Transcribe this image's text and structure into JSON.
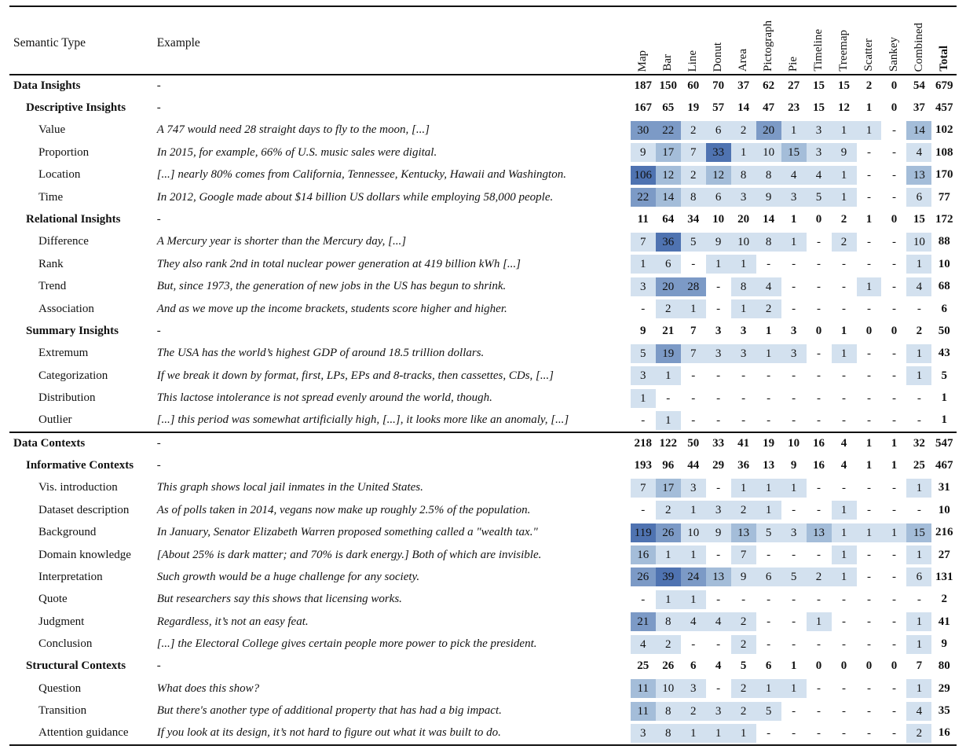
{
  "header": {
    "semantic_type": "Semantic Type",
    "example": "Example",
    "columns": [
      "Map",
      "Bar",
      "Line",
      "Donut",
      "Area",
      "Pictograph",
      "Pie",
      "Timeline",
      "Treemap",
      "Scatter",
      "Sankey",
      "Combined"
    ],
    "total": "Total"
  },
  "colors": {
    "empty": "#ffffff",
    "light": "#d3e1ef",
    "mid": "#a4bdd9",
    "strong": "#7c9ac6",
    "dark": "#4f73b1"
  },
  "rows": [
    {
      "level": 1,
      "name": "Data Insights",
      "example": "-",
      "values": [
        "187",
        "150",
        "60",
        "70",
        "37",
        "62",
        "27",
        "15",
        "15",
        "2",
        "0",
        "54"
      ],
      "total": "679"
    },
    {
      "level": 2,
      "name": "Descriptive Insights",
      "example": "-",
      "values": [
        "167",
        "65",
        "19",
        "57",
        "14",
        "47",
        "23",
        "15",
        "12",
        "1",
        "0",
        "37"
      ],
      "total": "457"
    },
    {
      "level": 3,
      "name": "Value",
      "example": "A 747 would need 28 straight days to fly to the moon, [...]",
      "values": [
        "30",
        "22",
        "2",
        "6",
        "2",
        "20",
        "1",
        "3",
        "1",
        "1",
        "-",
        "14"
      ],
      "total": "102"
    },
    {
      "level": 3,
      "name": "Proportion",
      "example": "In 2015, for example, 66% of U.S. music sales were digital.",
      "values": [
        "9",
        "17",
        "7",
        "33",
        "1",
        "10",
        "15",
        "3",
        "9",
        "-",
        "-",
        "4"
      ],
      "total": "108"
    },
    {
      "level": 3,
      "name": "Location",
      "example": "[...] nearly 80% comes from California, Tennessee, Kentucky, Hawaii and Washington.",
      "values": [
        "106",
        "12",
        "2",
        "12",
        "8",
        "8",
        "4",
        "4",
        "1",
        "-",
        "-",
        "13"
      ],
      "total": "170"
    },
    {
      "level": 3,
      "name": "Time",
      "example": "In 2012, Google made about $14 billion US dollars while employing 58,000 people.",
      "values": [
        "22",
        "14",
        "8",
        "6",
        "3",
        "9",
        "3",
        "5",
        "1",
        "-",
        "-",
        "6"
      ],
      "total": "77"
    },
    {
      "level": 2,
      "name": "Relational Insights",
      "example": "-",
      "values": [
        "11",
        "64",
        "34",
        "10",
        "20",
        "14",
        "1",
        "0",
        "2",
        "1",
        "0",
        "15"
      ],
      "total": "172"
    },
    {
      "level": 3,
      "name": "Difference",
      "example": "A Mercury year is shorter than the Mercury day, [...]",
      "values": [
        "7",
        "36",
        "5",
        "9",
        "10",
        "8",
        "1",
        "-",
        "2",
        "-",
        "-",
        "10"
      ],
      "total": "88"
    },
    {
      "level": 3,
      "name": "Rank",
      "example": "They also rank 2nd in total nuclear power generation at 419 billion kWh [...]",
      "values": [
        "1",
        "6",
        "-",
        "1",
        "1",
        "-",
        "-",
        "-",
        "-",
        "-",
        "-",
        "1"
      ],
      "total": "10"
    },
    {
      "level": 3,
      "name": "Trend",
      "example": "But, since 1973, the generation of new jobs in the US has begun to shrink.",
      "values": [
        "3",
        "20",
        "28",
        "-",
        "8",
        "4",
        "-",
        "-",
        "-",
        "1",
        "-",
        "4"
      ],
      "total": "68"
    },
    {
      "level": 3,
      "name": "Association",
      "example": "And as we move up the income brackets, students score higher and higher.",
      "values": [
        "-",
        "2",
        "1",
        "-",
        "1",
        "2",
        "-",
        "-",
        "-",
        "-",
        "-",
        "-"
      ],
      "total": "6"
    },
    {
      "level": 2,
      "name": "Summary Insights",
      "example": "-",
      "values": [
        "9",
        "21",
        "7",
        "3",
        "3",
        "1",
        "3",
        "0",
        "1",
        "0",
        "0",
        "2"
      ],
      "total": "50"
    },
    {
      "level": 3,
      "name": "Extremum",
      "example": "The USA has the world’s highest GDP of around 18.5 trillion dollars.",
      "values": [
        "5",
        "19",
        "7",
        "3",
        "3",
        "1",
        "3",
        "-",
        "1",
        "-",
        "-",
        "1"
      ],
      "total": "43"
    },
    {
      "level": 3,
      "name": "Categorization",
      "example": "If we break it down by format, first, LPs, EPs and 8-tracks, then cassettes, CDs, [...]",
      "values": [
        "3",
        "1",
        "-",
        "-",
        "-",
        "-",
        "-",
        "-",
        "-",
        "-",
        "-",
        "1"
      ],
      "total": "5"
    },
    {
      "level": 3,
      "name": "Distribution",
      "example": "This lactose intolerance is not spread evenly around the world, though.",
      "values": [
        "1",
        "-",
        "-",
        "-",
        "-",
        "-",
        "-",
        "-",
        "-",
        "-",
        "-",
        "-"
      ],
      "total": "1"
    },
    {
      "level": 3,
      "name": "Outlier",
      "example": "[...] this period was somewhat artificially high, [...], it looks more like an anomaly, [...]",
      "values": [
        "-",
        "1",
        "-",
        "-",
        "-",
        "-",
        "-",
        "-",
        "-",
        "-",
        "-",
        "-"
      ],
      "total": "1"
    },
    {
      "level": 1,
      "name": "Data Contexts",
      "example": "-",
      "values": [
        "218",
        "122",
        "50",
        "33",
        "41",
        "19",
        "10",
        "16",
        "4",
        "1",
        "1",
        "32"
      ],
      "total": "547"
    },
    {
      "level": 2,
      "name": "Informative Contexts",
      "example": "-",
      "values": [
        "193",
        "96",
        "44",
        "29",
        "36",
        "13",
        "9",
        "16",
        "4",
        "1",
        "1",
        "25"
      ],
      "total": "467"
    },
    {
      "level": 3,
      "name": "Vis. introduction",
      "example": "This graph shows local jail inmates in the United States.",
      "values": [
        "7",
        "17",
        "3",
        "-",
        "1",
        "1",
        "1",
        "-",
        "-",
        "-",
        "-",
        "1"
      ],
      "total": "31"
    },
    {
      "level": 3,
      "name": "Dataset description",
      "example": "As of polls taken in 2014, vegans now make up roughly 2.5% of the population.",
      "values": [
        "-",
        "2",
        "1",
        "3",
        "2",
        "1",
        "-",
        "-",
        "1",
        "-",
        "-",
        "-"
      ],
      "total": "10"
    },
    {
      "level": 3,
      "name": "Background",
      "example": "In January, Senator Elizabeth Warren proposed something called a \"wealth tax.\"",
      "values": [
        "119",
        "26",
        "10",
        "9",
        "13",
        "5",
        "3",
        "13",
        "1",
        "1",
        "1",
        "15"
      ],
      "total": "216"
    },
    {
      "level": 3,
      "name": "Domain knowledge",
      "example": "[About 25% is dark matter; and 70% is dark energy.] Both of which are invisible.",
      "values": [
        "16",
        "1",
        "1",
        "-",
        "7",
        "-",
        "-",
        "-",
        "1",
        "-",
        "-",
        "1"
      ],
      "total": "27"
    },
    {
      "level": 3,
      "name": "Interpretation",
      "example": "Such growth would be a huge challenge for any society.",
      "values": [
        "26",
        "39",
        "24",
        "13",
        "9",
        "6",
        "5",
        "2",
        "1",
        "-",
        "-",
        "6"
      ],
      "total": "131"
    },
    {
      "level": 3,
      "name": "Quote",
      "example": "But researchers say this shows that licensing works.",
      "values": [
        "-",
        "1",
        "1",
        "-",
        "-",
        "-",
        "-",
        "-",
        "-",
        "-",
        "-",
        "-"
      ],
      "total": "2"
    },
    {
      "level": 3,
      "name": "Judgment",
      "example": "Regardless, it’s not an easy feat.",
      "values": [
        "21",
        "8",
        "4",
        "4",
        "2",
        "-",
        "-",
        "1",
        "-",
        "-",
        "-",
        "1"
      ],
      "total": "41"
    },
    {
      "level": 3,
      "name": "Conclusion",
      "example": "[...] the Electoral College gives certain people more power to pick the president.",
      "values": [
        "4",
        "2",
        "-",
        "-",
        "2",
        "-",
        "-",
        "-",
        "-",
        "-",
        "-",
        "1"
      ],
      "total": "9"
    },
    {
      "level": 2,
      "name": "Structural Contexts",
      "example": "-",
      "values": [
        "25",
        "26",
        "6",
        "4",
        "5",
        "6",
        "1",
        "0",
        "0",
        "0",
        "0",
        "7"
      ],
      "total": "80"
    },
    {
      "level": 3,
      "name": "Question",
      "example": "What does this show?",
      "values": [
        "11",
        "10",
        "3",
        "-",
        "2",
        "1",
        "1",
        "-",
        "-",
        "-",
        "-",
        "1"
      ],
      "total": "29"
    },
    {
      "level": 3,
      "name": "Transition",
      "example": "But there's another type of additional property that has had a big impact.",
      "values": [
        "11",
        "8",
        "2",
        "3",
        "2",
        "5",
        "-",
        "-",
        "-",
        "-",
        "-",
        "4"
      ],
      "total": "35"
    },
    {
      "level": 3,
      "name": "Attention guidance",
      "example": "If you look at its design, it’s not hard to figure out what it was built to do.",
      "values": [
        "3",
        "8",
        "1",
        "1",
        "1",
        "-",
        "-",
        "-",
        "-",
        "-",
        "-",
        "2"
      ],
      "total": "16"
    }
  ]
}
